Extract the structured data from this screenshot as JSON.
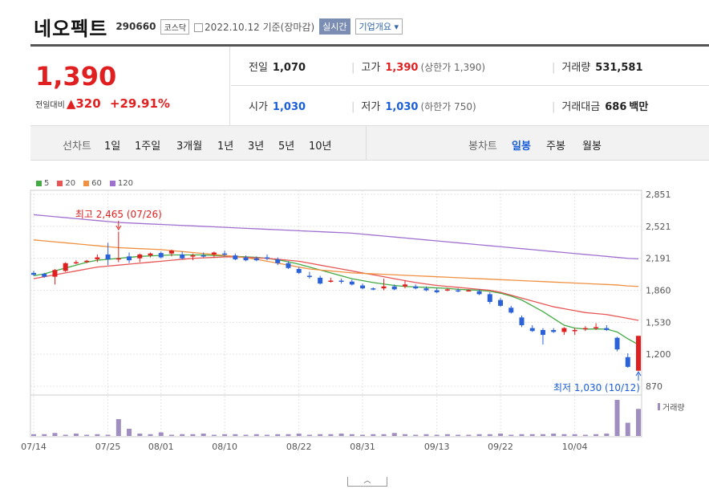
{
  "header": {
    "name": "네오펙트",
    "code": "290660",
    "market": "코스닥",
    "date": "2022.10.12 기준(장마감)",
    "live": "실시간",
    "overview": "기업개요"
  },
  "price": {
    "current": "1,390",
    "change_label": "전일대비",
    "change": "320",
    "change_pct": "+29.91%"
  },
  "stats": {
    "prev_label": "전일",
    "prev": "1,070",
    "high_label": "고가",
    "high": "1,390",
    "high_sub": "(상한가 1,390)",
    "volume_label": "거래량",
    "volume": "531,581",
    "open_label": "시가",
    "open": "1,030",
    "low_label": "저가",
    "low": "1,030",
    "low_sub": "(하한가 750)",
    "amount_label": "거래대금",
    "amount": "686",
    "amount_unit": "백만"
  },
  "tabs": {
    "line_label": "선차트",
    "line_opts": [
      "1일",
      "1주일",
      "3개월",
      "1년",
      "3년",
      "5년",
      "10년"
    ],
    "candle_label": "봉차트",
    "candle_opts": [
      "일봉",
      "주봉",
      "월봉"
    ],
    "active_candle": "일봉"
  },
  "chart_data": {
    "type": "candlestick",
    "ma_legend": [
      {
        "name": "5",
        "color": "#44aa44"
      },
      {
        "name": "20",
        "color": "#e85555"
      },
      {
        "name": "60",
        "color": "#f09040"
      },
      {
        "name": "120",
        "color": "#a070d0"
      }
    ],
    "y_ticks": [
      2851,
      2521,
      2191,
      1860,
      1530,
      1200,
      870
    ],
    "y_tick_labels": [
      "2,851",
      "2,521",
      "2,191",
      "1,860",
      "1,530",
      "1,200",
      "870"
    ],
    "ylim": [
      870,
      2851
    ],
    "x_ticks": [
      "07/14",
      "07/25",
      "08/01",
      "08/10",
      "08/22",
      "08/31",
      "09/13",
      "09/22",
      "10/04"
    ],
    "x_tick_index": [
      0,
      7,
      12,
      18,
      25,
      31,
      38,
      44,
      51
    ],
    "max_annotation": "최고 2,465 (07/26)",
    "min_annotation": "최저 1,030 (10/12)",
    "max_index": 8,
    "min_index": 57,
    "volume_label": "거래량",
    "candles": [
      [
        2040,
        2060,
        2010,
        2020
      ],
      [
        2030,
        2040,
        1990,
        2000
      ],
      [
        2000,
        2080,
        1920,
        2070
      ],
      [
        2060,
        2150,
        2050,
        2140
      ],
      [
        2150,
        2170,
        2130,
        2150
      ],
      [
        2160,
        2175,
        2140,
        2165
      ],
      [
        2180,
        2230,
        2150,
        2200
      ],
      [
        2230,
        2350,
        2120,
        2180
      ],
      [
        2180,
        2465,
        2150,
        2190
      ],
      [
        2210,
        2250,
        2140,
        2170
      ],
      [
        2190,
        2240,
        2150,
        2230
      ],
      [
        2220,
        2250,
        2200,
        2240
      ],
      [
        2245,
        2260,
        2190,
        2200
      ],
      [
        2240,
        2280,
        2210,
        2270
      ],
      [
        2230,
        2260,
        2180,
        2190
      ],
      [
        2210,
        2240,
        2170,
        2220
      ],
      [
        2220,
        2250,
        2200,
        2210
      ],
      [
        2230,
        2260,
        2200,
        2250
      ],
      [
        2240,
        2270,
        2210,
        2230
      ],
      [
        2220,
        2240,
        2170,
        2180
      ],
      [
        2200,
        2220,
        2160,
        2170
      ],
      [
        2190,
        2210,
        2160,
        2170
      ],
      [
        2200,
        2230,
        2170,
        2190
      ],
      [
        2180,
        2200,
        2120,
        2140
      ],
      [
        2140,
        2160,
        2080,
        2090
      ],
      [
        2080,
        2100,
        2030,
        2040
      ],
      [
        2010,
        2050,
        1980,
        2000
      ],
      [
        1990,
        2010,
        1920,
        1930
      ],
      [
        1950,
        1990,
        1940,
        1960
      ],
      [
        1960,
        1980,
        1930,
        1950
      ],
      [
        1950,
        1970,
        1910,
        1920
      ],
      [
        1910,
        1930,
        1870,
        1880
      ],
      [
        1880,
        1890,
        1860,
        1870
      ],
      [
        1880,
        1980,
        1860,
        1900
      ],
      [
        1900,
        1920,
        1860,
        1870
      ],
      [
        1900,
        1960,
        1880,
        1920
      ],
      [
        1900,
        1920,
        1870,
        1880
      ],
      [
        1880,
        1900,
        1850,
        1860
      ],
      [
        1860,
        1880,
        1830,
        1840
      ],
      [
        1860,
        1880,
        1850,
        1870
      ],
      [
        1860,
        1880,
        1840,
        1850
      ],
      [
        1860,
        1870,
        1850,
        1860
      ],
      [
        1850,
        1870,
        1810,
        1820
      ],
      [
        1820,
        1840,
        1720,
        1740
      ],
      [
        1760,
        1780,
        1690,
        1700
      ],
      [
        1680,
        1700,
        1620,
        1630
      ],
      [
        1580,
        1600,
        1480,
        1500
      ],
      [
        1470,
        1500,
        1430,
        1440
      ],
      [
        1450,
        1470,
        1300,
        1400
      ],
      [
        1450,
        1470,
        1420,
        1430
      ],
      [
        1430,
        1480,
        1400,
        1470
      ],
      [
        1440,
        1470,
        1400,
        1450
      ],
      [
        1460,
        1490,
        1440,
        1470
      ],
      [
        1470,
        1520,
        1450,
        1480
      ],
      [
        1470,
        1500,
        1440,
        1450
      ],
      [
        1370,
        1380,
        1230,
        1250
      ],
      [
        1170,
        1210,
        1060,
        1070
      ],
      [
        1030,
        1390,
        1030,
        1390
      ]
    ],
    "ma5": [
      2010,
      2030,
      2060,
      2090,
      2120,
      2150,
      2170,
      2180,
      2190,
      2200,
      2210,
      2215,
      2220,
      2225,
      2225,
      2225,
      2225,
      2220,
      2215,
      2210,
      2205,
      2200,
      2190,
      2175,
      2155,
      2130,
      2100,
      2070,
      2040,
      2010,
      1980,
      1960,
      1940,
      1925,
      1910,
      1900,
      1895,
      1890,
      1885,
      1880,
      1870,
      1865,
      1860,
      1850,
      1830,
      1800,
      1760,
      1700,
      1640,
      1570,
      1500,
      1470,
      1460,
      1460,
      1460,
      1430,
      1360,
      1300
    ],
    "ma20": [
      1980,
      2000,
      2020,
      2040,
      2060,
      2080,
      2100,
      2110,
      2120,
      2130,
      2140,
      2150,
      2160,
      2170,
      2180,
      2190,
      2195,
      2200,
      2205,
      2205,
      2200,
      2195,
      2190,
      2180,
      2170,
      2160,
      2140,
      2120,
      2100,
      2080,
      2060,
      2040,
      2020,
      2000,
      1980,
      1960,
      1940,
      1925,
      1910,
      1900,
      1890,
      1880,
      1870,
      1860,
      1840,
      1810,
      1780,
      1750,
      1720,
      1690,
      1670,
      1650,
      1630,
      1620,
      1610,
      1590,
      1570,
      1550
    ],
    "ma60": [
      2380,
      2370,
      2360,
      2350,
      2340,
      2330,
      2320,
      2310,
      2300,
      2295,
      2290,
      2285,
      2280,
      2270,
      2260,
      2250,
      2240,
      2230,
      2220,
      2210,
      2195,
      2180,
      2160,
      2140,
      2120,
      2100,
      2080,
      2070,
      2060,
      2050,
      2040,
      2035,
      2030,
      2025,
      2020,
      2015,
      2010,
      2005,
      2000,
      1995,
      1990,
      1985,
      1980,
      1975,
      1970,
      1965,
      1960,
      1955,
      1950,
      1945,
      1940,
      1935,
      1930,
      1925,
      1920,
      1915,
      1905,
      1900
    ],
    "ma120": [
      2640,
      2630,
      2620,
      2610,
      2600,
      2590,
      2580,
      2570,
      2560,
      2555,
      2550,
      2545,
      2540,
      2535,
      2530,
      2525,
      2520,
      2515,
      2510,
      2505,
      2500,
      2495,
      2490,
      2485,
      2480,
      2475,
      2470,
      2465,
      2460,
      2455,
      2450,
      2440,
      2430,
      2420,
      2410,
      2400,
      2390,
      2380,
      2370,
      2360,
      2350,
      2340,
      2330,
      2320,
      2310,
      2300,
      2290,
      2280,
      2270,
      2260,
      2250,
      2240,
      2230,
      2220,
      2210,
      2200,
      2190,
      2185
    ],
    "volumes": [
      3,
      3,
      5,
      2,
      4,
      2,
      3,
      2,
      28,
      12,
      4,
      3,
      6,
      2,
      3,
      3,
      4,
      2,
      3,
      3,
      2,
      3,
      2,
      3,
      3,
      4,
      2,
      3,
      3,
      4,
      3,
      2,
      3,
      3,
      5,
      3,
      2,
      3,
      2,
      3,
      2,
      2,
      3,
      3,
      4,
      2,
      3,
      3,
      3,
      4,
      3,
      3,
      2,
      3,
      4,
      60,
      22,
      45
    ],
    "colors": {
      "up": "#e02020",
      "down": "#2c62d8",
      "volume": "#a08ec0"
    }
  }
}
